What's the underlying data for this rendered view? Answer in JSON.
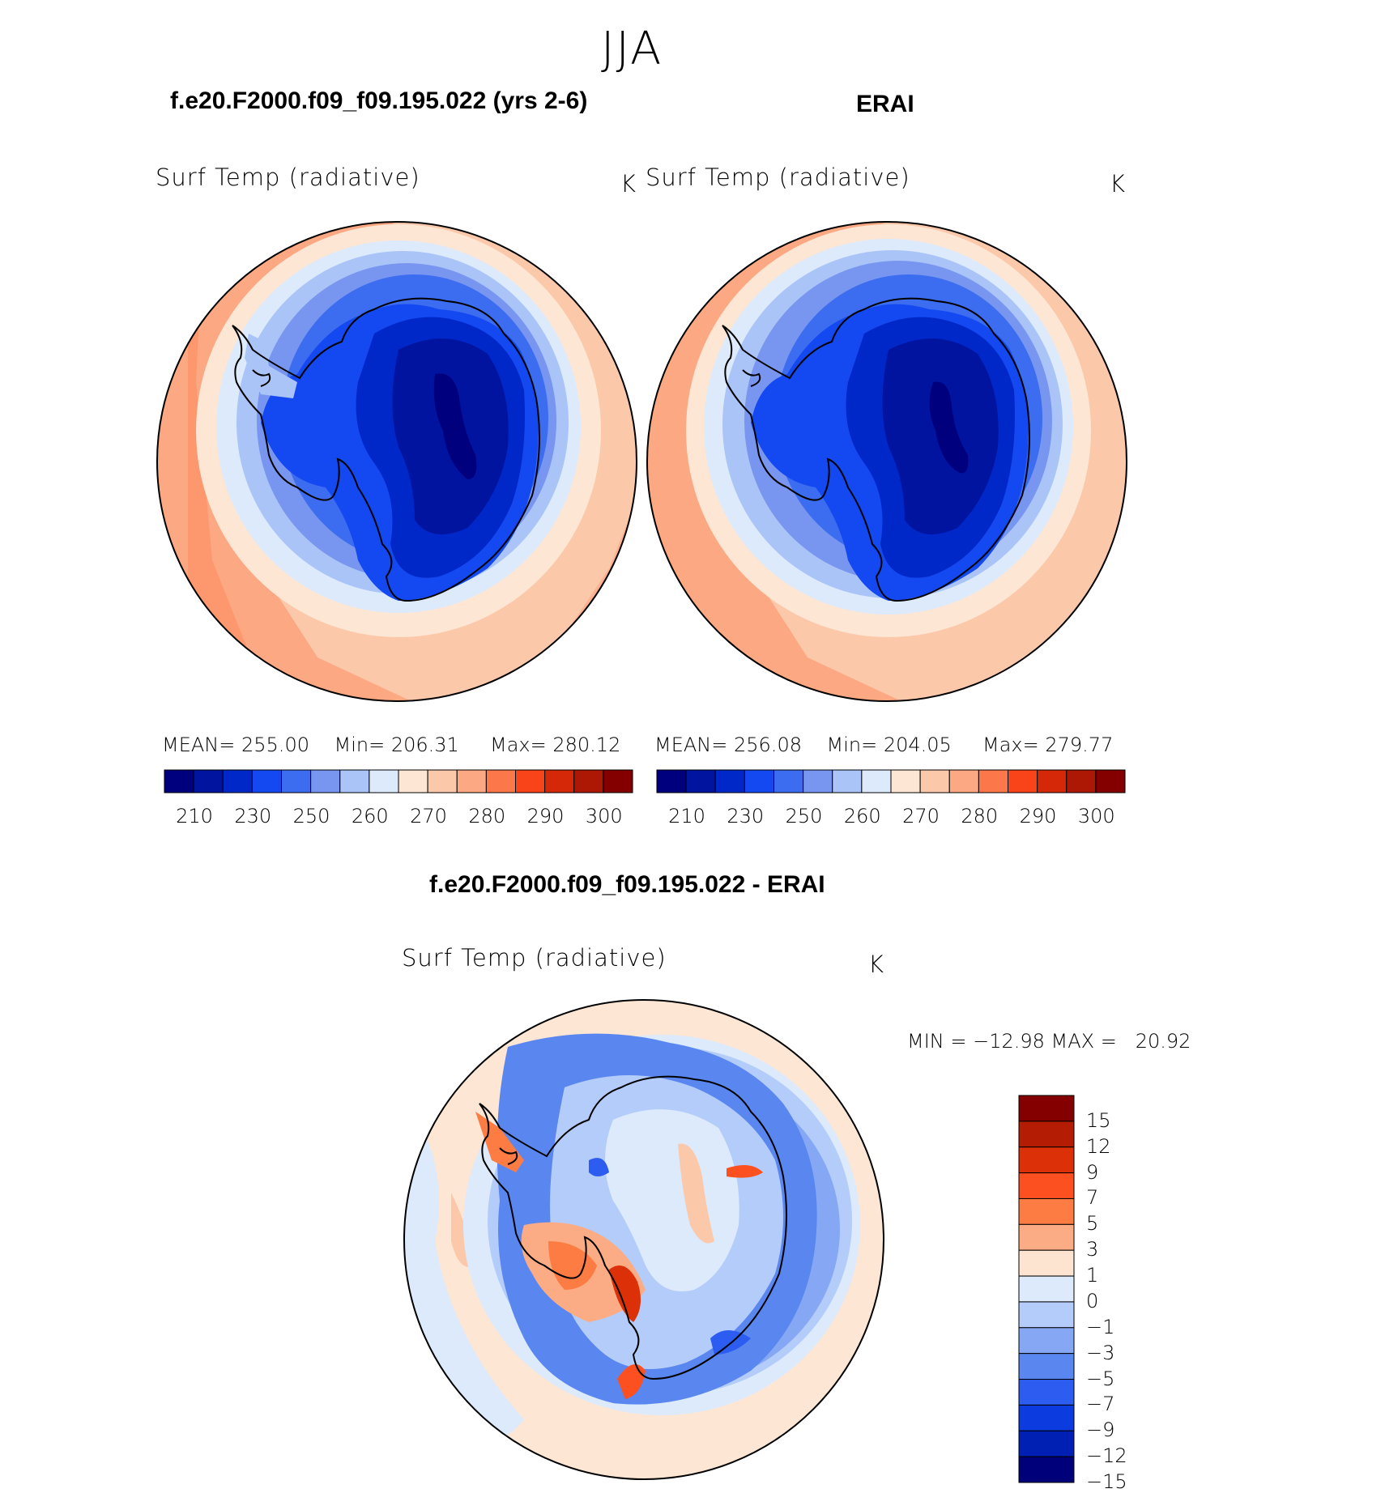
{
  "figure": {
    "season": "JJA",
    "panels": [
      {
        "title": "f.e20.F2000.f09_f09.195.022 (yrs 2-6)",
        "variable": "Surf Temp (radiative)",
        "units": "K",
        "stats": {
          "mean_label": "MEAN=",
          "mean": "255.00",
          "min_label": "Min=",
          "min": "206.31",
          "max_label": "Max=",
          "max": "280.12"
        }
      },
      {
        "title": "ERAI",
        "variable": "Surf Temp (radiative)",
        "units": "K",
        "stats": {
          "mean_label": "MEAN=",
          "mean": "256.08",
          "min_label": "Min=",
          "min": "204.05",
          "max_label": "Max=",
          "max": "279.77"
        }
      }
    ],
    "difference": {
      "title": "f.e20.F2000.f09_f09.195.022 - ERAI",
      "variable": "Surf Temp (radiative)",
      "units": "K",
      "minmax": "MIN = −12.98 MAX =   20.92"
    },
    "abs_colorbar": {
      "colors": [
        "#00007f",
        "#0014a0",
        "#0028c8",
        "#1448f0",
        "#3c6cf0",
        "#7896f0",
        "#aac4f8",
        "#dceafc",
        "#fde6d4",
        "#fcc8aa",
        "#fca882",
        "#fc784a",
        "#f84418",
        "#d42808",
        "#ac1804",
        "#840000"
      ],
      "labels": [
        "210",
        "230",
        "250",
        "260",
        "270",
        "280",
        "290",
        "300"
      ]
    },
    "diff_colorbar": {
      "colors": [
        "#840000",
        "#b41c04",
        "#dc3008",
        "#fc5020",
        "#fc7c44",
        "#fcac84",
        "#fde4d0",
        "#dceafc",
        "#b4ccfa",
        "#86a8f4",
        "#5a86f0",
        "#2c5cf0",
        "#0c3ce0",
        "#0020b4",
        "#00007a"
      ],
      "labels": [
        "15",
        "12",
        "9",
        "7",
        "5",
        "3",
        "1",
        "0",
        "−1",
        "−3",
        "−5",
        "−7",
        "−9",
        "−12",
        "−15"
      ]
    }
  },
  "chart_data": {
    "type": "heatmap",
    "projection": "south-polar stereographic",
    "title": "JJA",
    "panels": [
      {
        "name": "f.e20.F2000.f09_f09.195.022 (yrs 2-6)",
        "field": "Surf Temp (radiative)",
        "units": "K",
        "mean": 255.0,
        "min": 206.31,
        "max": 280.12
      },
      {
        "name": "ERAI",
        "field": "Surf Temp (radiative)",
        "units": "K",
        "mean": 256.08,
        "min": 204.05,
        "max": 279.77
      },
      {
        "name": "f.e20.F2000.f09_f09.195.022 - ERAI",
        "field": "Surf Temp (radiative)",
        "units": "K",
        "min": -12.98,
        "max": 20.92
      }
    ],
    "abs_levels": [
      210,
      230,
      250,
      260,
      270,
      280,
      290,
      300
    ],
    "diff_levels": [
      15,
      12,
      9,
      7,
      5,
      3,
      1,
      0,
      -1,
      -3,
      -5,
      -7,
      -9,
      -12,
      -15
    ]
  }
}
